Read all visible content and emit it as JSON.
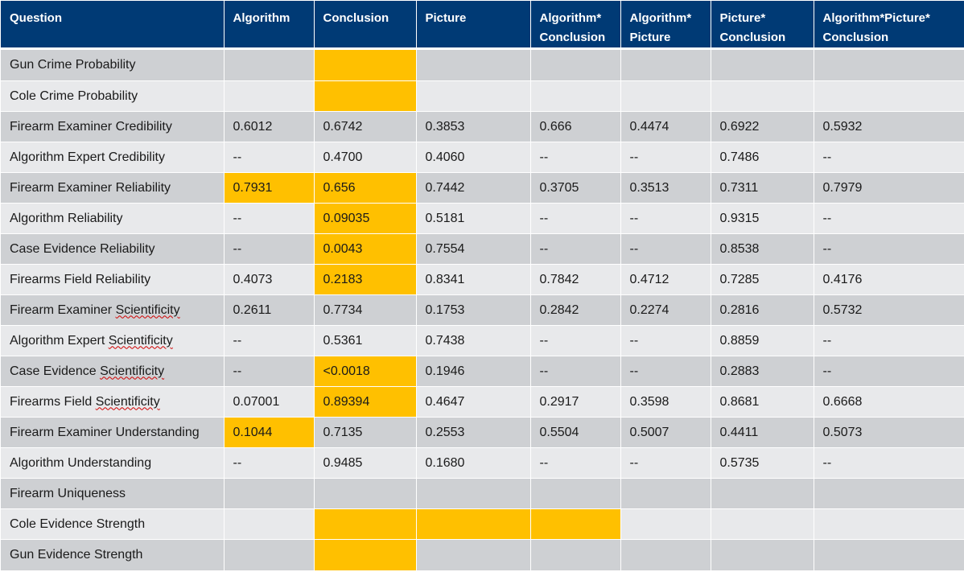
{
  "table": {
    "headers": [
      [
        "Question"
      ],
      [
        "Algorithm"
      ],
      [
        "Conclusion"
      ],
      [
        "Picture"
      ],
      [
        "Algorithm*",
        "Conclusion"
      ],
      [
        "Algorithm*",
        "Picture"
      ],
      [
        "Picture*",
        "Conclusion"
      ],
      [
        "Algorithm*Picture*",
        "Conclusion"
      ]
    ],
    "rows": [
      {
        "question": "Gun Crime Probability",
        "cells": [
          "",
          "",
          "",
          "",
          "",
          "",
          ""
        ],
        "highlight": [
          1
        ]
      },
      {
        "question": "Cole Crime Probability",
        "cells": [
          "",
          "",
          "",
          "",
          "",
          "",
          ""
        ],
        "highlight": [
          1
        ]
      },
      {
        "question": "Firearm Examiner Credibility",
        "cells": [
          "0.6012",
          "0.6742",
          "0.3853",
          "0.666",
          "0.4474",
          "0.6922",
          "0.5932"
        ],
        "highlight": []
      },
      {
        "question": "Algorithm Expert Credibility",
        "cells": [
          "--",
          "0.4700",
          "0.4060",
          "--",
          "--",
          "0.7486",
          "--"
        ],
        "highlight": []
      },
      {
        "question": "Firearm Examiner Reliability",
        "cells": [
          "0.7931",
          "0.656",
          "0.7442",
          "0.3705",
          "0.3513",
          "0.7311",
          "0.7979"
        ],
        "highlight": [
          0,
          1
        ]
      },
      {
        "question": "Algorithm Reliability",
        "cells": [
          "--",
          "0.09035",
          "0.5181",
          "--",
          "--",
          "0.9315",
          "--"
        ],
        "highlight": [
          1
        ]
      },
      {
        "question": "Case Evidence Reliability",
        "cells": [
          "--",
          "0.0043",
          "0.7554",
          "--",
          "--",
          "0.8538",
          "--"
        ],
        "highlight": [
          1
        ]
      },
      {
        "question": "Firearms Field Reliability",
        "cells": [
          "0.4073",
          "0.2183",
          "0.8341",
          "0.7842",
          "0.4712",
          "0.7285",
          "0.4176"
        ],
        "highlight": [
          1
        ]
      },
      {
        "question": "Firearm Examiner Scientificity",
        "cells": [
          "0.2611",
          "0.7734",
          "0.1753",
          "0.2842",
          "0.2274",
          "0.2816",
          "0.5732"
        ],
        "highlight": []
      },
      {
        "question": "Algorithm Expert Scientificity",
        "cells": [
          "--",
          "0.5361",
          "0.7438",
          "--",
          "--",
          "0.8859",
          "--"
        ],
        "highlight": []
      },
      {
        "question": "Case Evidence Scientificity",
        "cells": [
          "--",
          "<0.0018",
          "0.1946",
          "--",
          "--",
          "0.2883",
          "--"
        ],
        "highlight": [
          1
        ]
      },
      {
        "question": "Firearms Field Scientificity",
        "cells": [
          "0.07001",
          "0.89394",
          "0.4647",
          "0.2917",
          "0.3598",
          "0.8681",
          "0.6668"
        ],
        "highlight": [
          1
        ]
      },
      {
        "question": "Firearm Examiner Understanding",
        "cells": [
          "0.1044",
          "0.7135",
          "0.2553",
          "0.5504",
          "0.5007",
          "0.4411",
          "0.5073"
        ],
        "highlight": [
          0
        ]
      },
      {
        "question": "Algorithm Understanding",
        "cells": [
          "--",
          "0.9485",
          "0.1680",
          "--",
          "--",
          "0.5735",
          "--"
        ],
        "highlight": []
      },
      {
        "question": "Firearm Uniqueness",
        "cells": [
          "",
          "",
          "",
          "",
          "",
          "",
          ""
        ],
        "highlight": []
      },
      {
        "question": "Cole Evidence Strength",
        "cells": [
          "",
          "",
          "",
          "",
          "",
          "",
          ""
        ],
        "highlight": [
          1,
          2,
          3
        ]
      },
      {
        "question": "Gun Evidence Strength",
        "cells": [
          "",
          "",
          "",
          "",
          "",
          "",
          ""
        ],
        "highlight": [
          1
        ]
      }
    ]
  },
  "colors": {
    "header_bg": "#003a75",
    "highlight": "#ffc000",
    "row_dark": "#ced0d3",
    "row_light": "#e8e9eb"
  }
}
